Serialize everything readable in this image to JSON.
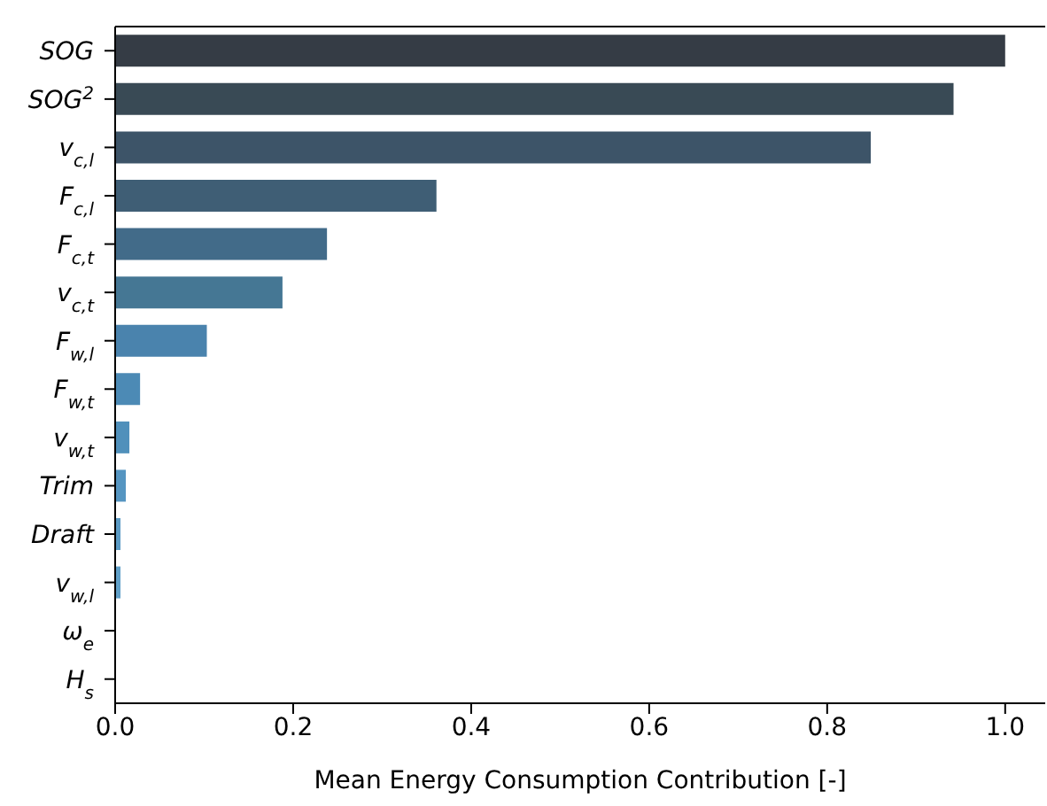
{
  "chart_data": {
    "type": "bar",
    "orientation": "horizontal",
    "categories": [
      "SOG",
      "SOG$^{2}$",
      "v$_{c,l}$",
      "F$_{c,l}$",
      "F$_{c,t}$",
      "v$_{c,t}$",
      "F$_{w,l}$",
      "F$_{w,t}$",
      "v$_{w,t}$",
      "Trim",
      "Draft",
      "v$_{w,l}$",
      "ω$_{e}$",
      "H$_{s}$"
    ],
    "values": [
      1.0,
      0.942,
      0.849,
      0.361,
      0.238,
      0.188,
      0.103,
      0.028,
      0.016,
      0.012,
      0.006,
      0.006,
      null,
      null
    ],
    "colors": [
      "#353c45",
      "#394a55",
      "#3d5468",
      "#3f5e75",
      "#426b89",
      "#457794",
      "#4a83ad",
      "#4c8ab5",
      "#5090bb",
      "#5595c1",
      "#5b9ac4",
      "#61a0c8",
      "#66a3cb",
      "#6ba8ce"
    ],
    "xlabel": "Mean Energy Consumption Contribution [-]",
    "xlim": [
      0,
      1.045
    ],
    "xticks": [
      {
        "value": 0,
        "label": "0.0"
      },
      {
        "value": 0.2,
        "label": "0.2"
      },
      {
        "value": 0.4,
        "label": "0.4"
      },
      {
        "value": 0.6,
        "label": "0.6"
      },
      {
        "value": 0.8,
        "label": "0.8"
      },
      {
        "value": 1.0,
        "label": "1.0"
      }
    ],
    "grid": false,
    "legend": false
  }
}
